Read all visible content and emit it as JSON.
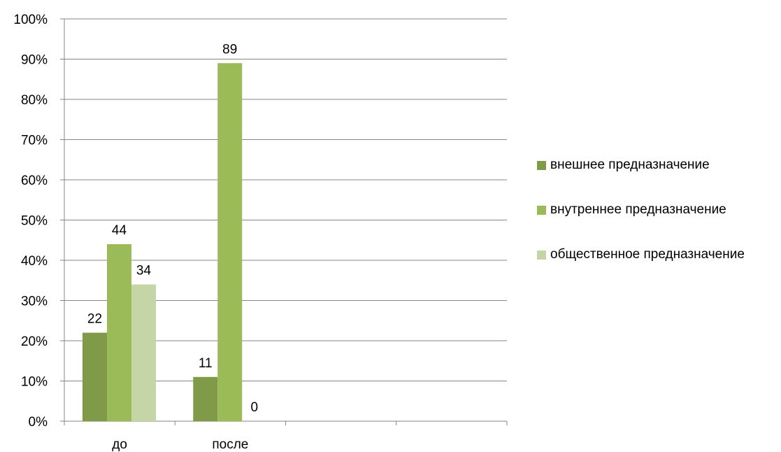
{
  "chart_data": {
    "type": "bar",
    "categories": [
      "до",
      "после",
      "",
      ""
    ],
    "series": [
      {
        "name": "внешнее предназначение",
        "color": "#7f9a48",
        "values": [
          22,
          11,
          null,
          null
        ]
      },
      {
        "name": "внутреннее предназначение",
        "color": "#9bbb59",
        "values": [
          44,
          89,
          null,
          null
        ]
      },
      {
        "name": "общественное предназначение",
        "color": "#c5d5a6",
        "values": [
          34,
          0,
          null,
          null
        ]
      }
    ],
    "data_labels": [
      [
        "22",
        "11"
      ],
      [
        "44",
        "89"
      ],
      [
        "34",
        "0"
      ]
    ],
    "yticks": [
      "0%",
      "10%",
      "20%",
      "30%",
      "40%",
      "50%",
      "60%",
      "70%",
      "80%",
      "90%",
      "100%"
    ],
    "ylim": [
      0,
      100
    ],
    "grid": true,
    "legend_position": "right",
    "title": "",
    "xlabel": "",
    "ylabel": ""
  }
}
